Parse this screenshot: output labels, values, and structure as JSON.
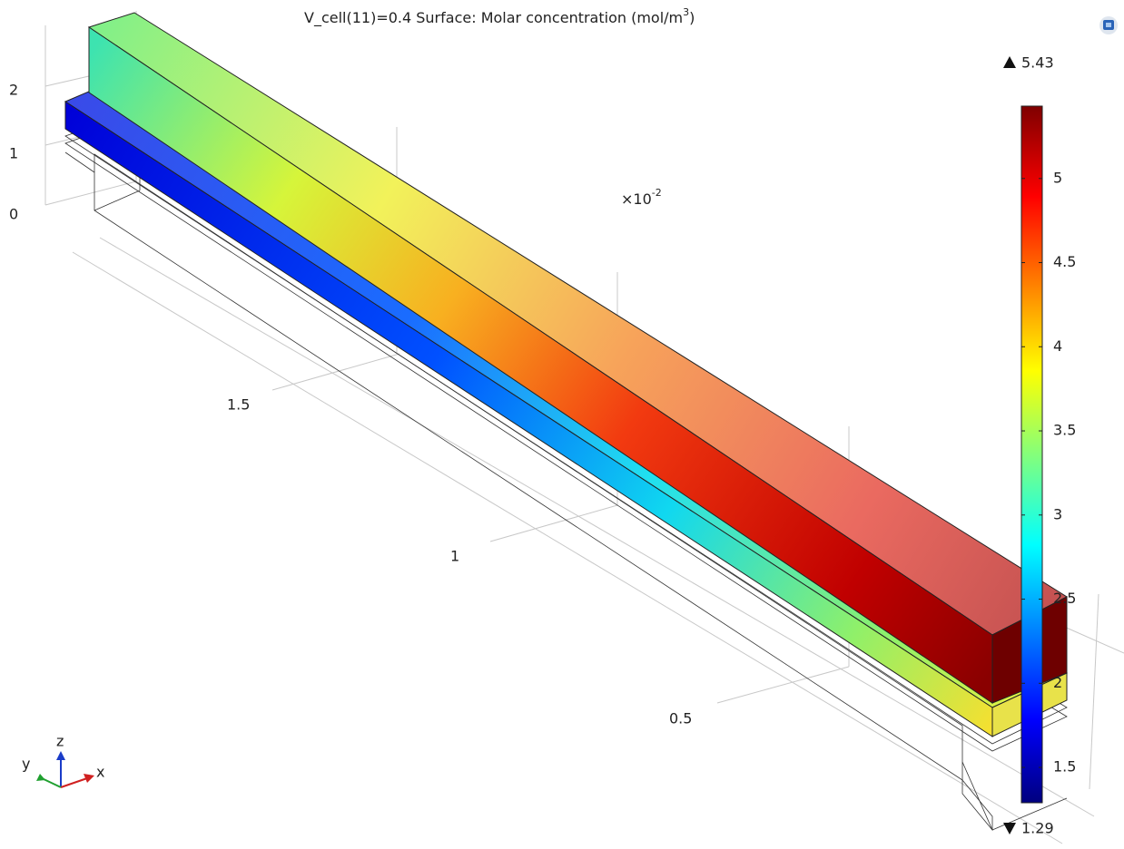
{
  "title": {
    "text": "V_cell(11)=0.4   Surface: Molar concentration (mol/m",
    "superscript": "3",
    "suffix": ")"
  },
  "axes": {
    "z_labels": [
      "2",
      "1",
      "0"
    ],
    "y_labels": [
      "1.5",
      "1",
      "0.5"
    ],
    "scale": {
      "base": "×10",
      "exponent": "-2"
    }
  },
  "triad": {
    "x": "x",
    "y": "y",
    "z": "z"
  },
  "colorbar": {
    "max": 5.43,
    "min": 1.29,
    "ticks": [
      1.5,
      2,
      2.5,
      3,
      3.5,
      4,
      4.5,
      5
    ]
  }
}
